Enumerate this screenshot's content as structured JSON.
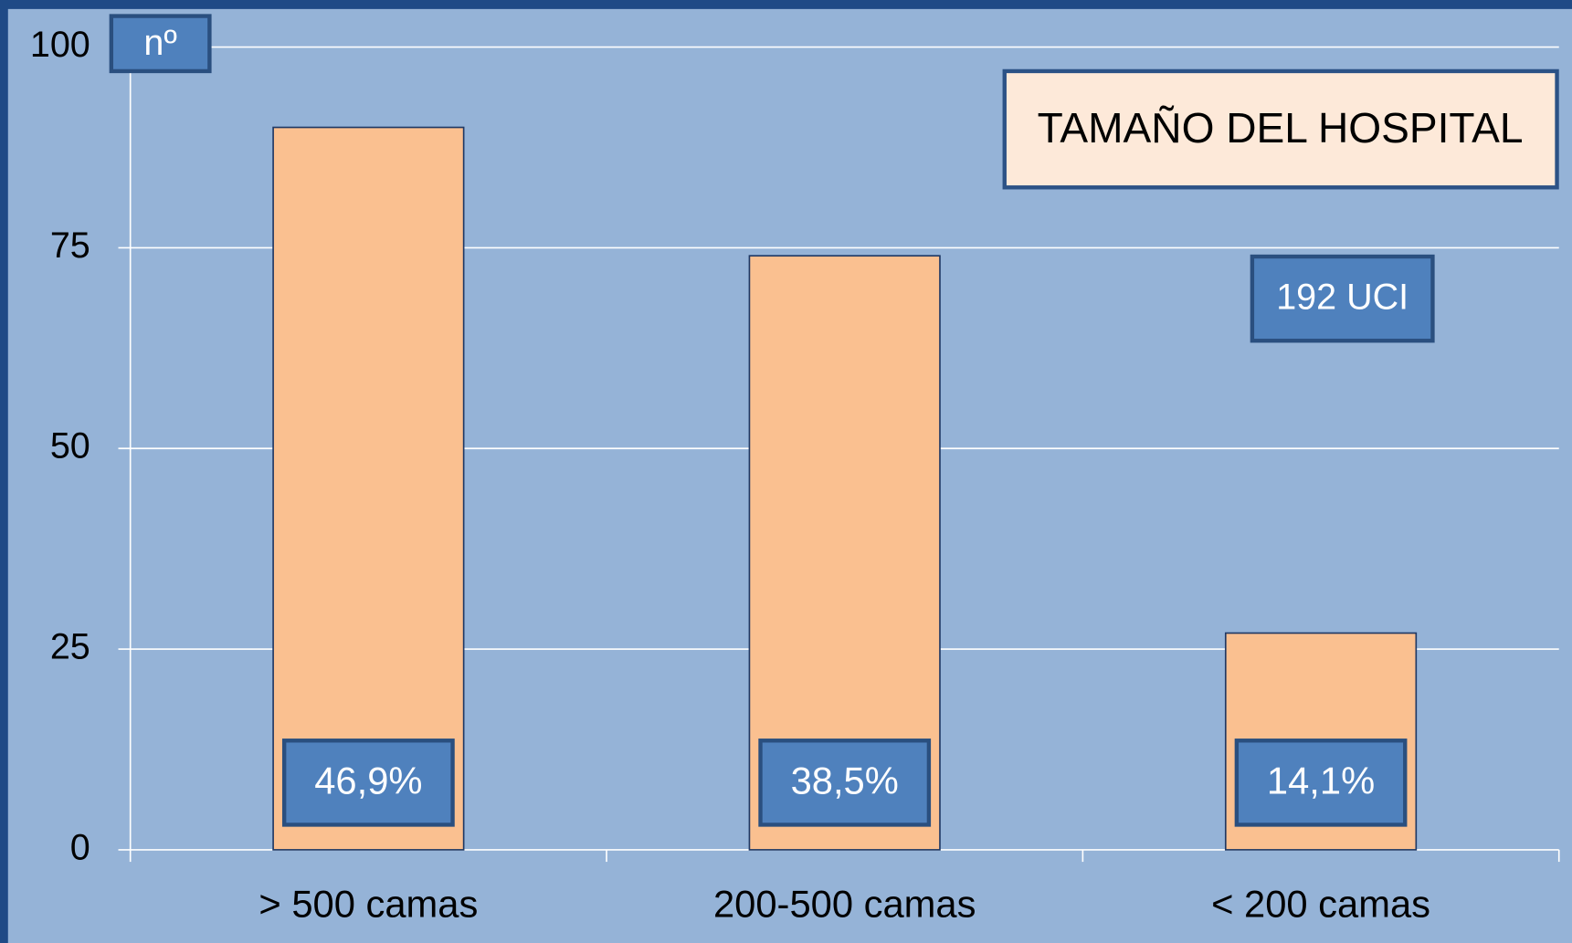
{
  "chart_data": {
    "type": "bar",
    "title": "TAMAÑO DEL HOSPITAL",
    "subtitle": "192 UCI",
    "y_label": "nº",
    "categories": [
      "> 500 camas",
      "200-500 camas",
      "< 200 camas"
    ],
    "values": [
      90,
      74,
      27
    ],
    "bar_labels": [
      "46,9%",
      "38,5%",
      "14,1%"
    ],
    "color": "#fac090",
    "ylim": [
      0,
      100
    ],
    "yticks": [
      0,
      25,
      50,
      75,
      100
    ],
    "grid": true
  }
}
